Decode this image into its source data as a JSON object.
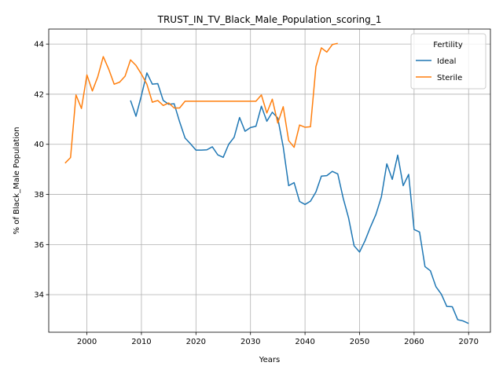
{
  "chart_data": {
    "type": "line",
    "title": "TRUST_IN_TV_Black_Male_Population_scoring_1",
    "xlabel": "Years",
    "ylabel": "% of Black_Male Population",
    "xlim": [
      1993,
      2074
    ],
    "ylim": [
      32.5,
      44.6
    ],
    "xticks": [
      2000,
      2010,
      2020,
      2030,
      2040,
      2050,
      2060,
      2070
    ],
    "yticks": [
      34,
      36,
      38,
      40,
      42,
      44
    ],
    "grid": true,
    "legend": {
      "title": "Fertility",
      "placement": "top-right"
    },
    "series": [
      {
        "name": "Ideal",
        "color": "#1f77b4",
        "points": [
          [
            2008,
            41.75
          ],
          [
            2009,
            41.12
          ],
          [
            2010,
            41.95
          ],
          [
            2011,
            42.85
          ],
          [
            2012,
            42.4
          ],
          [
            2013,
            42.42
          ],
          [
            2014,
            41.75
          ],
          [
            2015,
            41.6
          ],
          [
            2016,
            41.62
          ],
          [
            2017,
            40.9
          ],
          [
            2018,
            40.25
          ],
          [
            2019,
            40.02
          ],
          [
            2020,
            39.77
          ],
          [
            2021,
            39.77
          ],
          [
            2022,
            39.78
          ],
          [
            2023,
            39.9
          ],
          [
            2024,
            39.58
          ],
          [
            2025,
            39.48
          ],
          [
            2026,
            40.0
          ],
          [
            2027,
            40.28
          ],
          [
            2028,
            41.07
          ],
          [
            2029,
            40.52
          ],
          [
            2030,
            40.67
          ],
          [
            2031,
            40.72
          ],
          [
            2032,
            41.52
          ],
          [
            2033,
            40.92
          ],
          [
            2034,
            41.28
          ],
          [
            2035,
            41.05
          ],
          [
            2036,
            39.9
          ],
          [
            2037,
            38.35
          ],
          [
            2038,
            38.47
          ],
          [
            2039,
            37.72
          ],
          [
            2040,
            37.6
          ],
          [
            2041,
            37.73
          ],
          [
            2042,
            38.1
          ],
          [
            2043,
            38.73
          ],
          [
            2044,
            38.75
          ],
          [
            2045,
            38.92
          ],
          [
            2046,
            38.82
          ],
          [
            2047,
            37.85
          ],
          [
            2048,
            37.05
          ],
          [
            2049,
            35.95
          ],
          [
            2050,
            35.7
          ],
          [
            2051,
            36.15
          ],
          [
            2052,
            36.7
          ],
          [
            2053,
            37.2
          ],
          [
            2054,
            37.9
          ],
          [
            2055,
            39.22
          ],
          [
            2056,
            38.6
          ],
          [
            2057,
            39.57
          ],
          [
            2058,
            38.35
          ],
          [
            2059,
            38.8
          ],
          [
            2060,
            36.6
          ],
          [
            2061,
            36.5
          ],
          [
            2062,
            35.12
          ],
          [
            2063,
            34.95
          ],
          [
            2064,
            34.32
          ],
          [
            2065,
            34.02
          ],
          [
            2066,
            33.53
          ],
          [
            2067,
            33.52
          ],
          [
            2068,
            33.0
          ],
          [
            2069,
            32.95
          ],
          [
            2070,
            32.85
          ]
        ]
      },
      {
        "name": "Sterile",
        "color": "#ff7f0e",
        "points": [
          [
            1996,
            39.25
          ],
          [
            1997,
            39.47
          ],
          [
            1998,
            41.97
          ],
          [
            1999,
            41.43
          ],
          [
            2000,
            42.77
          ],
          [
            2001,
            42.13
          ],
          [
            2002,
            42.7
          ],
          [
            2003,
            43.5
          ],
          [
            2004,
            43.0
          ],
          [
            2005,
            42.4
          ],
          [
            2006,
            42.48
          ],
          [
            2007,
            42.72
          ],
          [
            2008,
            43.37
          ],
          [
            2009,
            43.15
          ],
          [
            2010,
            42.8
          ],
          [
            2011,
            42.4
          ],
          [
            2012,
            41.68
          ],
          [
            2013,
            41.75
          ],
          [
            2014,
            41.55
          ],
          [
            2015,
            41.65
          ],
          [
            2016,
            41.45
          ],
          [
            2017,
            41.45
          ],
          [
            2018,
            41.72
          ],
          [
            2019,
            41.72
          ],
          [
            2020,
            41.72
          ],
          [
            2021,
            41.72
          ],
          [
            2022,
            41.72
          ],
          [
            2023,
            41.72
          ],
          [
            2024,
            41.72
          ],
          [
            2025,
            41.72
          ],
          [
            2026,
            41.72
          ],
          [
            2027,
            41.72
          ],
          [
            2028,
            41.72
          ],
          [
            2029,
            41.72
          ],
          [
            2030,
            41.72
          ],
          [
            2031,
            41.72
          ],
          [
            2032,
            41.97
          ],
          [
            2033,
            41.25
          ],
          [
            2034,
            41.8
          ],
          [
            2035,
            40.85
          ],
          [
            2036,
            41.5
          ],
          [
            2037,
            40.15
          ],
          [
            2038,
            39.88
          ],
          [
            2039,
            40.77
          ],
          [
            2040,
            40.68
          ],
          [
            2041,
            40.7
          ],
          [
            2042,
            43.1
          ],
          [
            2043,
            43.85
          ],
          [
            2044,
            43.68
          ],
          [
            2045,
            43.98
          ],
          [
            2046,
            44.03
          ]
        ]
      }
    ]
  }
}
